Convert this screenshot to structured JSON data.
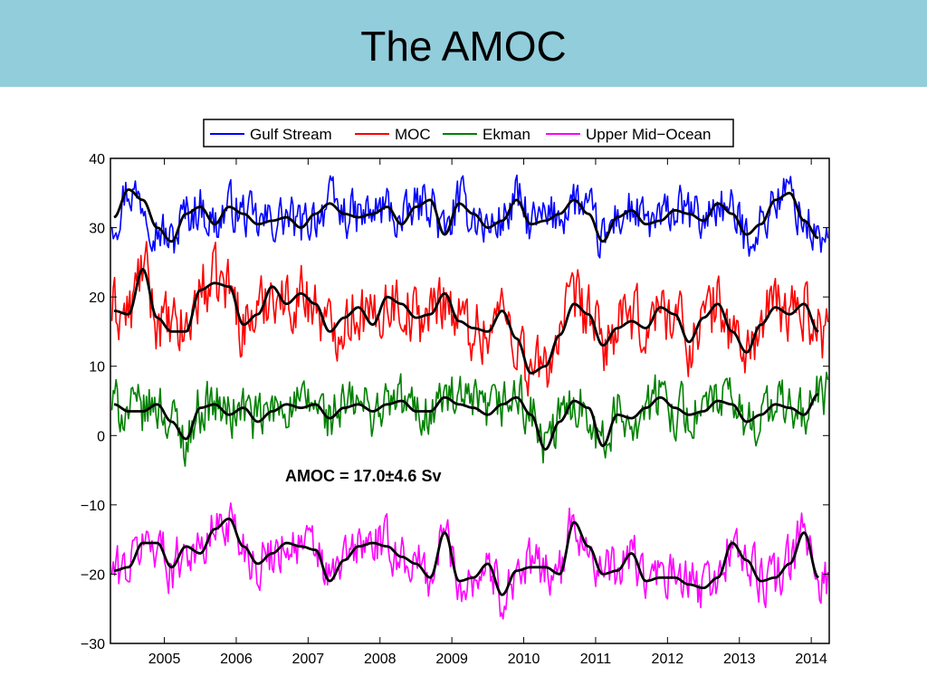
{
  "slide": {
    "title": "The AMOC"
  },
  "colors": {
    "title_band": "#92cddc",
    "gulf_stream": "#0000ff",
    "moc": "#ff0000",
    "ekman": "#008000",
    "upper_mid_ocean": "#ff00ff",
    "smoothed": "#000000"
  },
  "chart_data": {
    "type": "line",
    "title": "",
    "xlabel": "",
    "ylabel": "",
    "xlim": [
      2004.25,
      2014.25
    ],
    "ylim": [
      -30,
      40
    ],
    "yticks": [
      40,
      30,
      20,
      10,
      0,
      -10,
      -20,
      -30
    ],
    "ytick_labels": [
      "40",
      "30",
      "20",
      "10",
      "0",
      "−10",
      "−20",
      "−30"
    ],
    "xticks": [
      2005,
      2006,
      2007,
      2008,
      2009,
      2010,
      2011,
      2012,
      2013,
      2014
    ],
    "xtick_labels": [
      "2005",
      "2006",
      "2007",
      "2008",
      "2009",
      "2010",
      "2011",
      "2012",
      "2013",
      "2014"
    ],
    "grid": false,
    "legend_position": "top",
    "annotation": "AMOC = 17.0±4.6 Sv",
    "smoothed_x": [
      2004.3,
      2004.5,
      2004.7,
      2004.9,
      2005.1,
      2005.3,
      2005.5,
      2005.7,
      2005.9,
      2006.1,
      2006.3,
      2006.5,
      2006.7,
      2006.9,
      2007.1,
      2007.3,
      2007.5,
      2007.7,
      2007.9,
      2008.1,
      2008.3,
      2008.5,
      2008.7,
      2008.9,
      2009.1,
      2009.3,
      2009.5,
      2009.7,
      2009.9,
      2010.1,
      2010.3,
      2010.5,
      2010.7,
      2010.9,
      2011.1,
      2011.3,
      2011.5,
      2011.7,
      2011.9,
      2012.1,
      2012.3,
      2012.5,
      2012.7,
      2012.9,
      2013.1,
      2013.3,
      2013.5,
      2013.7,
      2013.9,
      2014.1
    ],
    "series": [
      {
        "name": "Gulf Stream",
        "color": "#0000ff",
        "smoothed": [
          31.5,
          35.5,
          34,
          30,
          28,
          32,
          33,
          30.5,
          33,
          32,
          30.5,
          31,
          31.5,
          30,
          32,
          33.5,
          32,
          31.5,
          32,
          33,
          30.5,
          33,
          34,
          29,
          33.5,
          32,
          30,
          31,
          34,
          30.5,
          31,
          32,
          34,
          32,
          28,
          31.5,
          32.5,
          30.5,
          31,
          32.5,
          32,
          31,
          33.5,
          32,
          29,
          30.5,
          34,
          35,
          31,
          28.5
        ]
      },
      {
        "name": "MOC",
        "color": "#ff0000",
        "smoothed": [
          18,
          17.5,
          24,
          17,
          15,
          15,
          21,
          22,
          21.5,
          16,
          17.5,
          21.5,
          19,
          20.5,
          19,
          15,
          17,
          18.5,
          16,
          20,
          19,
          17,
          17.5,
          20.5,
          16.5,
          15.5,
          15,
          18,
          14,
          9,
          10,
          14.5,
          19,
          17.5,
          13,
          15.5,
          16.5,
          15.5,
          18.5,
          17.5,
          13.5,
          17,
          19,
          15,
          12,
          16,
          18.5,
          17.5,
          19,
          15
        ]
      },
      {
        "name": "Ekman",
        "color": "#008000",
        "smoothed": [
          4.5,
          3.5,
          3.5,
          4.5,
          2,
          -0.5,
          4,
          4.5,
          3,
          4,
          2,
          3.5,
          4.5,
          4,
          4.5,
          2.5,
          4,
          4.5,
          3.5,
          4.5,
          5,
          3.5,
          3.5,
          5.5,
          4.5,
          4,
          3,
          4.5,
          5.5,
          3,
          -2,
          2,
          5,
          4,
          -1.5,
          3,
          2.5,
          4,
          5.5,
          4,
          3,
          3.5,
          5,
          4.5,
          2,
          3,
          4.5,
          4,
          3,
          6
        ]
      },
      {
        "name": "Upper Mid−Ocean",
        "color": "#ff00ff",
        "smoothed": [
          -19.5,
          -19,
          -15.5,
          -15.5,
          -19,
          -16,
          -17,
          -13.5,
          -12,
          -16,
          -18.5,
          -17,
          -15.5,
          -16,
          -16.5,
          -21,
          -18,
          -16,
          -15.5,
          -16,
          -17.5,
          -18.5,
          -20.5,
          -14,
          -21,
          -20.5,
          -18.5,
          -23,
          -19.5,
          -19,
          -19,
          -20,
          -12.5,
          -16,
          -20,
          -19.5,
          -17,
          -21,
          -20.5,
          -20.5,
          -21.5,
          -22,
          -20.5,
          -15.5,
          -18,
          -21,
          -20.5,
          -18.5,
          -14,
          -20.5
        ]
      }
    ]
  }
}
